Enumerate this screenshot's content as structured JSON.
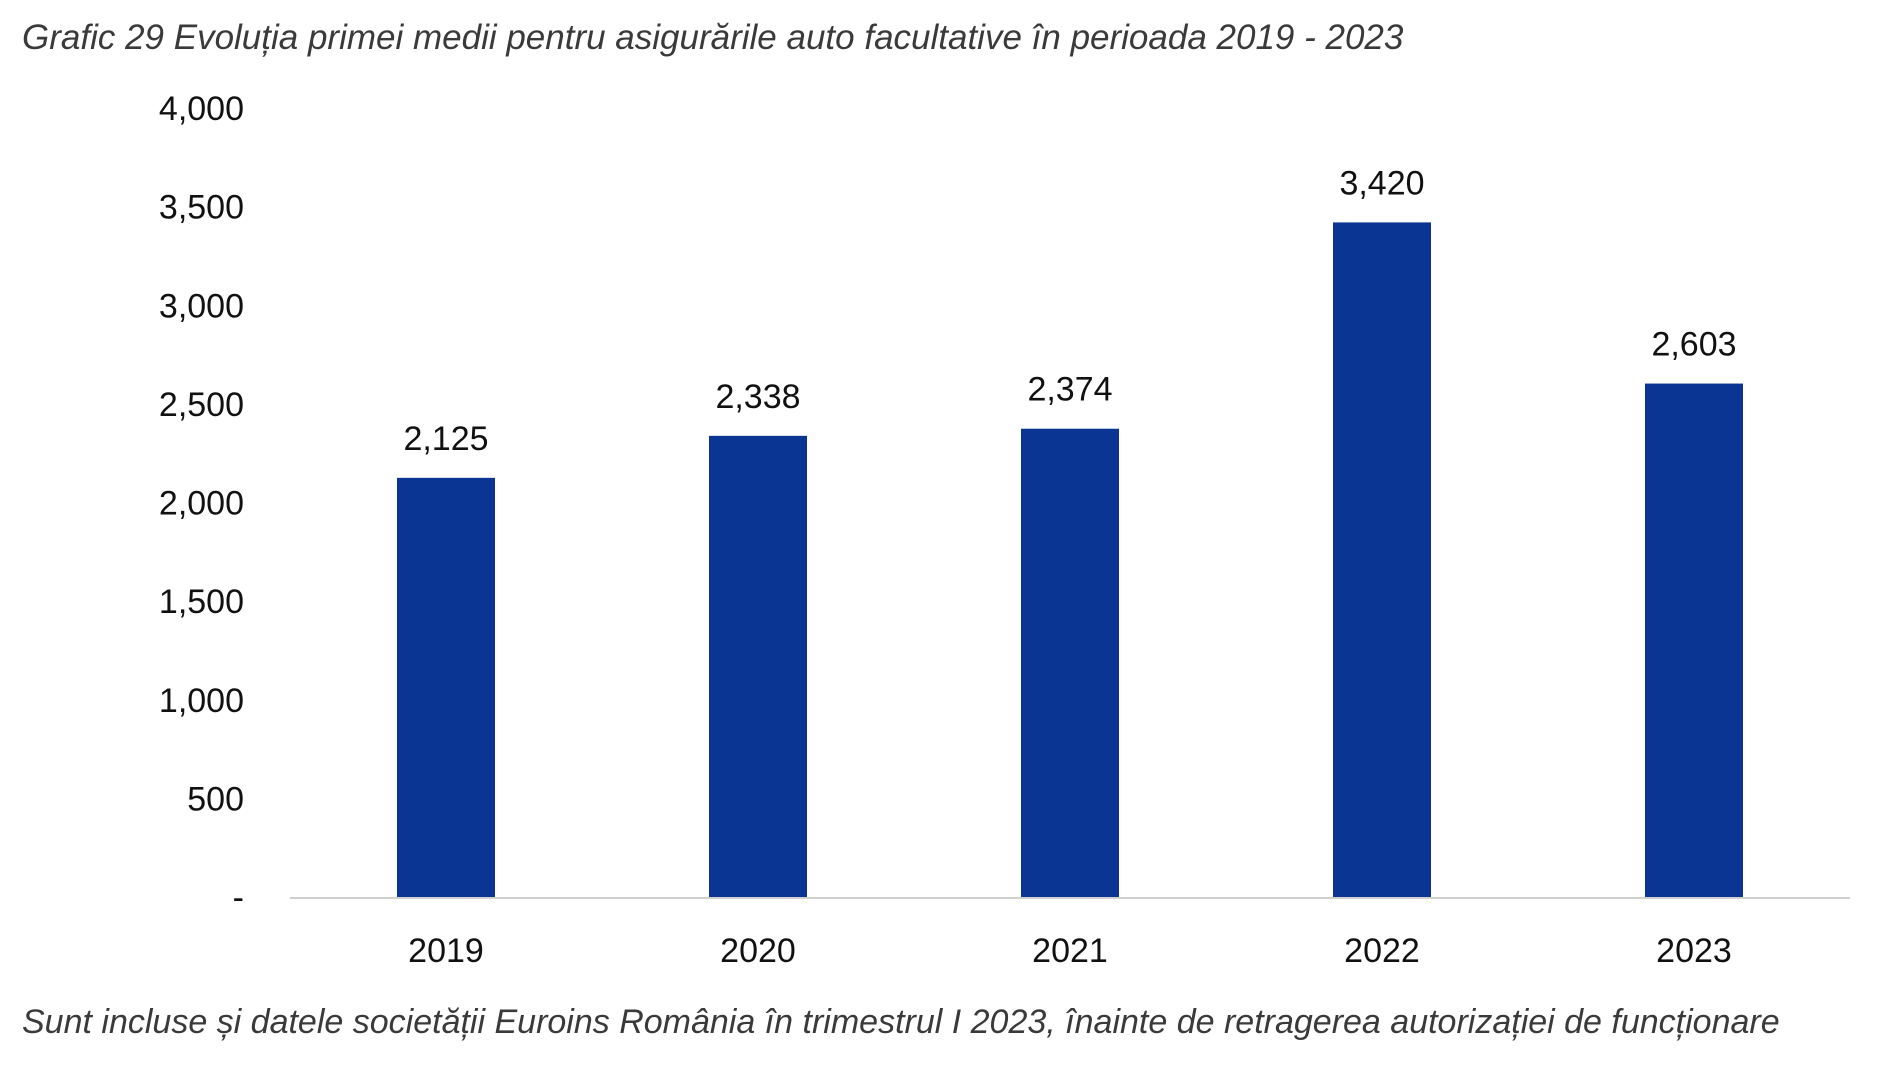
{
  "title": "Grafic 29 Evoluția primei medii pentru asigurările auto facultative în perioada 2019 - 2023",
  "footnote": "Sunt incluse și datele societății Euroins România în trimestrul I 2023, înainte de retragerea autorizației de funcționare",
  "chart_data": {
    "type": "bar",
    "categories": [
      "2019",
      "2020",
      "2021",
      "2022",
      "2023"
    ],
    "values": [
      2125,
      2338,
      2374,
      3420,
      2603
    ],
    "data_labels": [
      "2,125",
      "2,338",
      "2,374",
      "3,420",
      "2,603"
    ],
    "ylim": [
      0,
      4000
    ],
    "yticks": [
      0,
      500,
      1000,
      1500,
      2000,
      2500,
      3000,
      3500,
      4000
    ],
    "ytick_labels": [
      "-",
      "500",
      "1,000",
      "1,500",
      "2,000",
      "2,500",
      "3,000",
      "3,500",
      "4,000"
    ],
    "xlabel": "",
    "ylabel": "",
    "grid": false,
    "legend": "none",
    "bar_color": "#0a3592",
    "axis_color": "#d0d0d0"
  }
}
